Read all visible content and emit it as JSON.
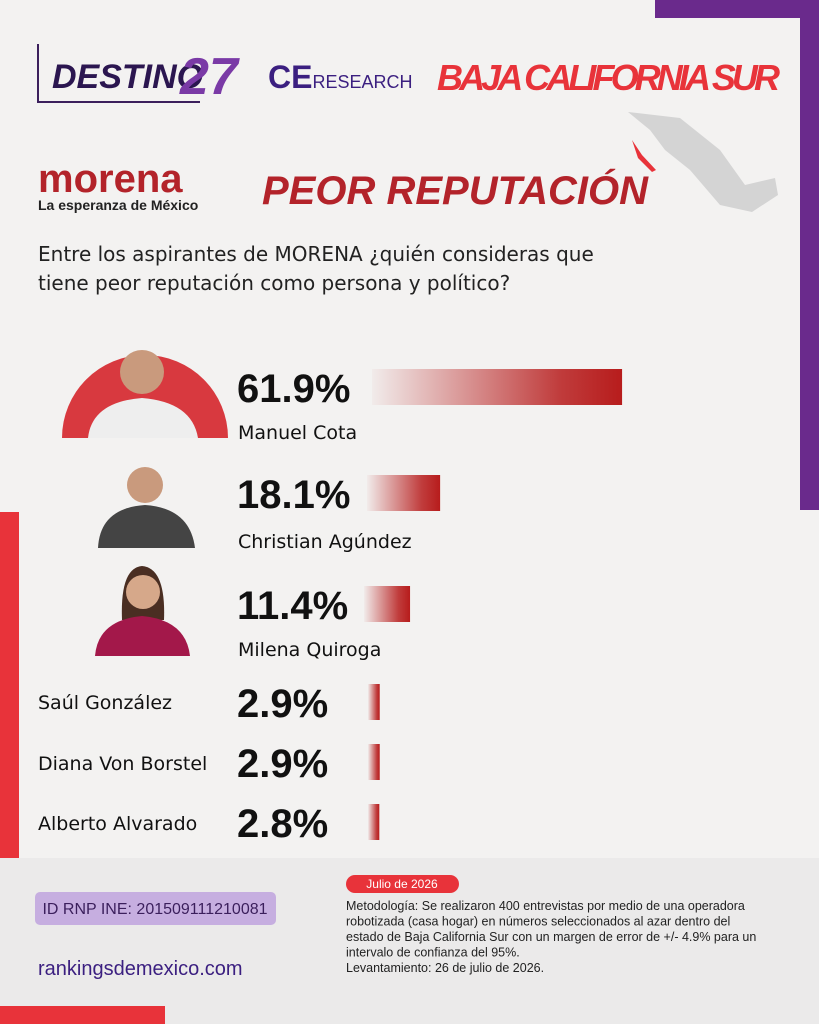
{
  "header": {
    "brand": "DESTINO",
    "brand_number": "27",
    "research": "CE",
    "research_suffix": "RESEARCH",
    "region": "BAJA CALIFORNIA SUR",
    "party": "morena",
    "party_tagline": "La esperanza de México"
  },
  "chart_data": {
    "type": "bar",
    "orientation": "horizontal",
    "title": "PEOR REPUTACIÓN",
    "subtitle": "Entre los aspirantes de MORENA ¿quién consideras que tiene peor reputación como persona y político?",
    "categories": [
      "Manuel Cota",
      "Christian Agúndez",
      "Milena Quiroga",
      "Saúl González",
      "Diana Von Borstel",
      "Alberto Alvarado"
    ],
    "values": [
      61.9,
      18.1,
      11.4,
      2.9,
      2.9,
      2.8
    ],
    "value_labels": [
      "61.9%",
      "18.1%",
      "11.4%",
      "2.9%",
      "2.9%",
      "2.8%"
    ],
    "color": "#b71c1c"
  },
  "footer": {
    "date": "Julio de 2026",
    "id": "ID RNP INE: 201509111210081",
    "website": "rankingsdemexico.com",
    "methodology": [
      "Metodología: Se realizaron 400 entrevistas por medio de una operadora",
      "robotizada (casa hogar) en números seleccionados al azar dentro del",
      "estado de Baja California Sur con un margen de error de +/- 4.9% para un",
      "intervalo de confianza del 95%.",
      "Levantamiento: 26 de julio de 2026."
    ]
  }
}
